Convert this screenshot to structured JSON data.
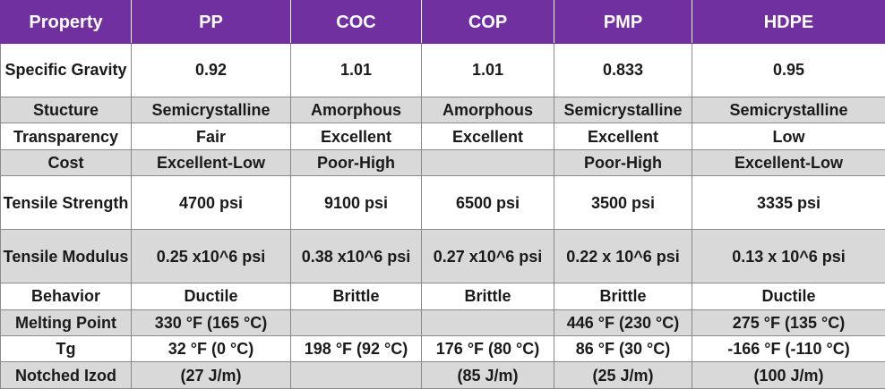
{
  "table": {
    "headers": [
      "Property",
      "PP",
      "COC",
      "COP",
      "PMP",
      "HDPE"
    ],
    "rows": [
      {
        "cells": [
          "Specific Gravity",
          "0.92",
          "1.01",
          "1.01",
          "0.833",
          "0.95"
        ]
      },
      {
        "cells": [
          "Stucture",
          "Semicrystalline",
          "Amorphous",
          "Amorphous",
          "Semicrystalline",
          "Semicrystalline"
        ]
      },
      {
        "cells": [
          "Transparency",
          "Fair",
          "Excellent",
          "Excellent",
          "Excellent",
          "Low"
        ]
      },
      {
        "cells": [
          "Cost",
          "Excellent-Low",
          "Poor-High",
          "",
          "Poor-High",
          "Excellent-Low"
        ]
      },
      {
        "cells": [
          "Tensile Strength",
          "4700 psi",
          "9100 psi",
          "6500 psi",
          "3500 psi",
          "3335 psi"
        ]
      },
      {
        "cells": [
          "Tensile Modulus",
          "0.25 x10^6 psi",
          "0.38 x10^6 psi",
          "0.27 x10^6 psi",
          "0.22 x 10^6 psi",
          "0.13 x 10^6 psi"
        ]
      },
      {
        "cells": [
          "Behavior",
          "Ductile",
          "Brittle",
          "Brittle",
          "Brittle",
          "Ductile"
        ]
      },
      {
        "cells": [
          "Melting Point",
          "330 °F (165 °C)",
          "",
          "",
          "446 °F (230 °C)",
          "275 °F (135 °C)"
        ]
      },
      {
        "cells": [
          "Tg",
          "32 °F (0 °C)",
          "198 °F (92 °C)",
          "176 °F (80 °C)",
          "86 °F (30 °C)",
          "-166 °F (-110 °C)"
        ]
      },
      {
        "cells": [
          "Notched Izod",
          "(27 J/m)",
          "",
          "(85 J/m)",
          "(25 J/m)",
          "(100 J/m)"
        ]
      }
    ]
  },
  "colors": {
    "header_bg": "#7030a0",
    "header_text": "#ffffff",
    "band_gray": "#d9d9d9",
    "band_white": "#ffffff",
    "border": "#8a8a8a"
  }
}
